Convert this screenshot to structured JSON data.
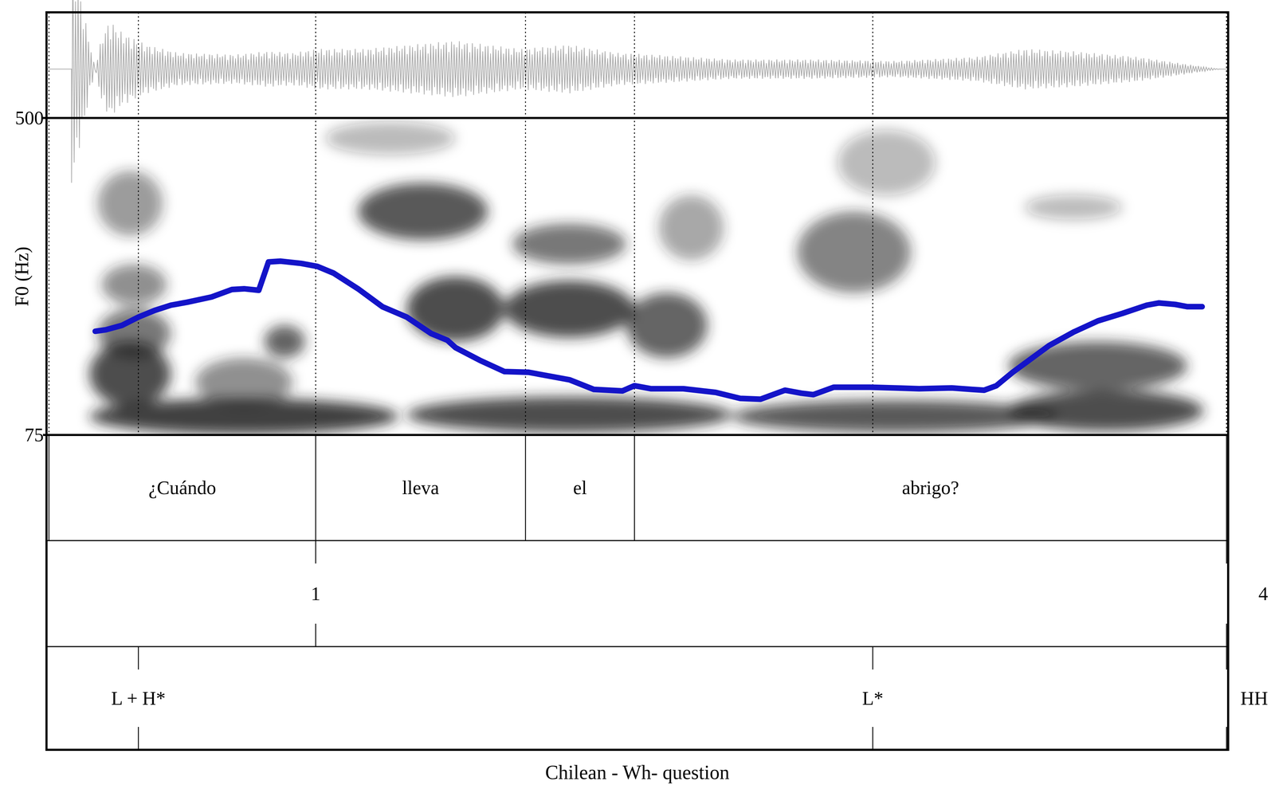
{
  "chart_data": {
    "type": "line",
    "title": "Chilean - Wh- question",
    "y_label": "F0 (Hz)",
    "x": [
      0.06,
      0.073,
      0.093,
      0.113,
      0.133,
      0.153,
      0.173,
      0.203,
      0.228,
      0.243,
      0.261,
      0.273,
      0.288,
      0.313,
      0.333,
      0.353,
      0.383,
      0.413,
      0.443,
      0.473,
      0.493,
      0.503,
      0.533,
      0.563,
      0.593,
      0.623,
      0.643,
      0.673,
      0.708,
      0.723,
      0.743,
      0.783,
      0.823,
      0.853,
      0.878,
      0.908,
      0.928,
      0.943,
      0.968,
      1.013,
      1.043,
      1.073,
      1.113,
      1.138,
      1.153,
      1.168,
      1.188,
      1.208,
      1.233,
      1.263,
      1.293,
      1.323,
      1.353,
      1.368,
      1.388,
      1.403,
      1.421
    ],
    "values": [
      214,
      216,
      222,
      233,
      242,
      249,
      253,
      260,
      270,
      271,
      269,
      307,
      308,
      305,
      301,
      292,
      271,
      247,
      233,
      211,
      202,
      192,
      175,
      160,
      159,
      153,
      149,
      136,
      134,
      141,
      137,
      137,
      132,
      124,
      123,
      135,
      131,
      129,
      139,
      139,
      138,
      137,
      138,
      136,
      135,
      141,
      159,
      175,
      195,
      213,
      228,
      238,
      249,
      252,
      250,
      247,
      247
    ],
    "color": "#1414c8",
    "xlim": [
      0,
      1.453
    ],
    "ylim": [
      75,
      500
    ],
    "yticks": [
      75,
      500
    ],
    "tick_labels": "y",
    "grid": false,
    "words": [
      {
        "label": "¿Cuándo",
        "start": 0.003,
        "end": 0.331
      },
      {
        "label": "lleva",
        "start": 0.331,
        "end": 0.589
      },
      {
        "label": "el",
        "start": 0.589,
        "end": 0.723
      },
      {
        "label": "abrigo?",
        "start": 0.723,
        "end": 1.451
      }
    ],
    "break_indices": [
      {
        "time": 0.331,
        "label": "1"
      },
      {
        "time": 1.451,
        "label": "4"
      }
    ],
    "tones": [
      {
        "time": 0.113,
        "label": "L + H*"
      },
      {
        "time": 1.016,
        "label": "L*"
      },
      {
        "time": 1.451,
        "label": "HH"
      }
    ]
  }
}
